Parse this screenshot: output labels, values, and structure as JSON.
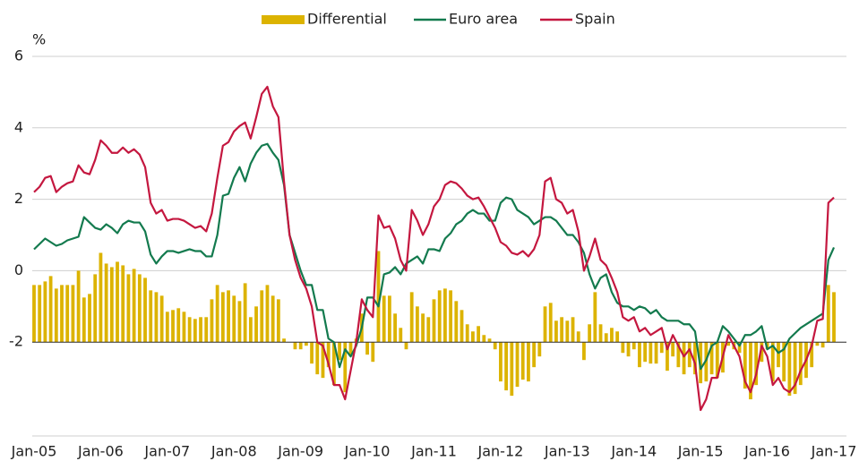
{
  "chart_data": {
    "type": "bar-line",
    "y_label": "%",
    "categories": [
      "Jan-05",
      null,
      null,
      null,
      null,
      null,
      null,
      null,
      null,
      null,
      null,
      null,
      "Jan-06",
      null,
      null,
      null,
      null,
      null,
      null,
      null,
      null,
      null,
      null,
      null,
      "Jan-07",
      null,
      null,
      null,
      null,
      null,
      null,
      null,
      null,
      null,
      null,
      null,
      "Jan-08",
      null,
      null,
      null,
      null,
      null,
      null,
      null,
      null,
      null,
      null,
      null,
      "Jan-09",
      null,
      null,
      null,
      null,
      null,
      null,
      null,
      null,
      null,
      null,
      null,
      "Jan-10",
      null,
      null,
      null,
      null,
      null,
      null,
      null,
      null,
      null,
      null,
      null,
      "Jan-11",
      null,
      null,
      null,
      null,
      null,
      null,
      null,
      null,
      null,
      null,
      null,
      "Jan-12",
      null,
      null,
      null,
      null,
      null,
      null,
      null,
      null,
      null,
      null,
      null,
      "Jan-13",
      null,
      null,
      null,
      null,
      null,
      null,
      null,
      null,
      null,
      null,
      null,
      "Jan-14",
      null,
      null,
      null,
      null,
      null,
      null,
      null,
      null,
      null,
      null,
      null,
      "Jan-15",
      null,
      null,
      null,
      null,
      null,
      null,
      null,
      null,
      null,
      null,
      null,
      "Jan-16",
      null,
      null,
      null,
      null,
      null,
      null,
      null,
      null,
      null,
      null,
      null,
      "Jan-17"
    ],
    "series": [
      {
        "name": "Differential",
        "type": "bar",
        "axis": "y2",
        "color": "#dcb300",
        "values": [
          1.6,
          1.6,
          1.7,
          1.85,
          1.5,
          1.6,
          1.6,
          1.6,
          2.0,
          1.25,
          1.35,
          1.9,
          2.5,
          2.2,
          2.1,
          2.25,
          2.15,
          1.9,
          2.05,
          1.9,
          1.8,
          1.45,
          1.4,
          1.3,
          0.85,
          0.9,
          0.95,
          0.85,
          0.7,
          0.65,
          0.7,
          0.7,
          1.2,
          1.6,
          1.4,
          1.45,
          1.3,
          1.15,
          1.65,
          0.7,
          1.0,
          1.45,
          1.6,
          1.3,
          1.2,
          0.1,
          0.0,
          -0.2,
          -0.2,
          -0.1,
          -0.6,
          -0.9,
          -1.0,
          -0.7,
          -1.2,
          -0.5,
          -1.4,
          -0.4,
          0.1,
          0.8,
          -0.35,
          -0.55,
          2.55,
          1.3,
          1.3,
          0.8,
          0.4,
          -0.2,
          1.4,
          1.0,
          0.8,
          0.7,
          1.2,
          1.45,
          1.5,
          1.45,
          1.15,
          0.9,
          0.5,
          0.3,
          0.45,
          0.2,
          0.1,
          -0.2,
          -1.1,
          -1.35,
          -1.5,
          -1.25,
          -1.05,
          -1.1,
          -0.7,
          -0.4,
          1.0,
          1.1,
          0.6,
          0.7,
          0.6,
          0.7,
          0.3,
          -0.5,
          0.5,
          1.4,
          0.5,
          0.25,
          0.4,
          0.3,
          -0.3,
          -0.4,
          -0.2,
          -0.7,
          -0.55,
          -0.6,
          -0.6,
          -0.3,
          -0.8,
          -0.4,
          -0.7,
          -0.9,
          -0.7,
          -0.9,
          -1.15,
          -1.1,
          -0.9,
          -1.0,
          -0.85,
          -0.1,
          -0.2,
          -0.3,
          -1.3,
          -1.6,
          -1.2,
          -0.55,
          -0.2,
          -1.1,
          -0.7,
          -1.1,
          -1.5,
          -1.45,
          -1.2,
          -1.0,
          -0.7,
          -0.1,
          -0.15,
          1.6,
          1.4
        ]
      },
      {
        "name": "Euro area",
        "type": "line",
        "color": "#137a4e",
        "values": [
          0.6,
          0.75,
          0.9,
          0.8,
          0.7,
          0.75,
          0.85,
          0.9,
          0.95,
          1.5,
          1.35,
          1.2,
          1.15,
          1.3,
          1.2,
          1.05,
          1.3,
          1.4,
          1.35,
          1.35,
          1.1,
          0.45,
          0.2,
          0.4,
          0.55,
          0.55,
          0.5,
          0.55,
          0.6,
          0.55,
          0.55,
          0.4,
          0.4,
          1.0,
          2.1,
          2.15,
          2.6,
          2.9,
          2.5,
          3.0,
          3.3,
          3.5,
          3.55,
          3.3,
          3.1,
          2.4,
          1.0,
          0.5,
          0.0,
          -0.4,
          -0.4,
          -1.1,
          -1.1,
          -1.9,
          -2.0,
          -2.7,
          -2.2,
          -2.4,
          -2.1,
          -1.6,
          -0.75,
          -0.75,
          -1.0,
          -0.1,
          -0.05,
          0.1,
          -0.1,
          0.2,
          0.3,
          0.4,
          0.2,
          0.6,
          0.6,
          0.55,
          0.9,
          1.05,
          1.3,
          1.4,
          1.6,
          1.7,
          1.6,
          1.6,
          1.4,
          1.4,
          1.9,
          2.05,
          2.0,
          1.7,
          1.6,
          1.5,
          1.3,
          1.4,
          1.5,
          1.5,
          1.4,
          1.2,
          1.0,
          1.0,
          0.8,
          0.5,
          -0.1,
          -0.5,
          -0.2,
          -0.1,
          -0.6,
          -0.9,
          -1.0,
          -1.0,
          -1.1,
          -1.0,
          -1.05,
          -1.2,
          -1.1,
          -1.3,
          -1.4,
          -1.4,
          -1.4,
          -1.5,
          -1.5,
          -1.7,
          -2.75,
          -2.5,
          -2.1,
          -2.0,
          -1.55,
          -1.7,
          -1.9,
          -2.1,
          -1.8,
          -1.8,
          -1.7,
          -1.55,
          -2.2,
          -2.1,
          -2.3,
          -2.2,
          -1.9,
          -1.75,
          -1.6,
          -1.5,
          -1.4,
          -1.3,
          -1.2,
          0.3,
          0.65
        ]
      },
      {
        "name": "Spain",
        "type": "line",
        "color": "#c4173f",
        "values": [
          2.2,
          2.35,
          2.6,
          2.65,
          2.2,
          2.35,
          2.45,
          2.5,
          2.95,
          2.75,
          2.7,
          3.1,
          3.65,
          3.5,
          3.3,
          3.3,
          3.45,
          3.3,
          3.4,
          3.25,
          2.9,
          1.9,
          1.6,
          1.7,
          1.4,
          1.45,
          1.45,
          1.4,
          1.3,
          1.2,
          1.25,
          1.1,
          1.6,
          2.6,
          3.5,
          3.6,
          3.9,
          4.05,
          4.15,
          3.7,
          4.3,
          4.95,
          5.15,
          4.6,
          4.3,
          2.5,
          1.0,
          0.3,
          -0.2,
          -0.5,
          -1.0,
          -2.0,
          -2.1,
          -2.6,
          -3.2,
          -3.2,
          -3.6,
          -2.8,
          -2.0,
          -0.8,
          -1.1,
          -1.3,
          1.55,
          1.2,
          1.25,
          0.9,
          0.3,
          0.0,
          1.7,
          1.4,
          1.0,
          1.3,
          1.8,
          2.0,
          2.4,
          2.5,
          2.45,
          2.3,
          2.1,
          2.0,
          2.05,
          1.8,
          1.5,
          1.2,
          0.8,
          0.7,
          0.5,
          0.45,
          0.55,
          0.4,
          0.6,
          1.0,
          2.5,
          2.6,
          2.0,
          1.9,
          1.6,
          1.7,
          1.1,
          0.0,
          0.4,
          0.9,
          0.3,
          0.15,
          -0.2,
          -0.6,
          -1.3,
          -1.4,
          -1.3,
          -1.7,
          -1.6,
          -1.8,
          -1.7,
          -1.6,
          -2.2,
          -1.8,
          -2.1,
          -2.4,
          -2.2,
          -2.6,
          -3.9,
          -3.6,
          -3.0,
          -3.0,
          -2.4,
          -1.8,
          -2.1,
          -2.4,
          -3.1,
          -3.4,
          -2.9,
          -2.1,
          -2.4,
          -3.2,
          -3.0,
          -3.3,
          -3.4,
          -3.2,
          -2.8,
          -2.5,
          -2.1,
          -1.4,
          -1.35,
          1.9,
          2.05
        ]
      }
    ],
    "ylim": [
      -4.6,
      6.3
    ],
    "yticks": [
      -2,
      0,
      2,
      4,
      6
    ],
    "y2lim": [
      -2.6,
      8.3
    ],
    "grid": true,
    "legend": "top"
  }
}
